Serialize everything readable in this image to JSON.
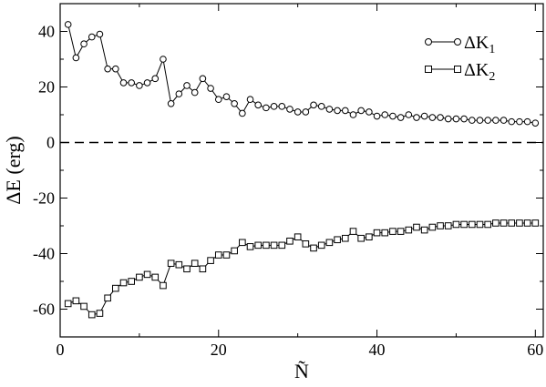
{
  "chart_data": {
    "type": "line",
    "xlabel": "Ñ",
    "ylabel": "ΔE (erg)",
    "xlim": [
      0,
      61
    ],
    "ylim": [
      -70,
      50
    ],
    "xticks": [
      0,
      20,
      40,
      60
    ],
    "xtick_labels": [
      "0",
      "20",
      "40",
      "60"
    ],
    "yticks": [
      -60,
      -40,
      -20,
      0,
      20,
      40
    ],
    "ytick_labels": [
      "-60",
      "-40",
      "-20",
      "0",
      "20",
      "40"
    ],
    "grid": false,
    "legend_position": "top-right",
    "reference_line": {
      "y": 0,
      "style": "dashed"
    },
    "series": [
      {
        "name": "ΔK",
        "name_sub": "1",
        "marker": "circle",
        "x": [
          1,
          2,
          3,
          4,
          5,
          6,
          7,
          8,
          9,
          10,
          11,
          12,
          13,
          14,
          15,
          16,
          17,
          18,
          19,
          20,
          21,
          22,
          23,
          24,
          25,
          26,
          27,
          28,
          29,
          30,
          31,
          32,
          33,
          34,
          35,
          36,
          37,
          38,
          39,
          40,
          41,
          42,
          43,
          44,
          45,
          46,
          47,
          48,
          49,
          50,
          51,
          52,
          53,
          54,
          55,
          56,
          57,
          58,
          59,
          60
        ],
        "values": [
          42.5,
          30.5,
          35.5,
          38,
          39,
          26.5,
          26.5,
          21.5,
          21.5,
          20.5,
          21.5,
          23,
          30,
          14,
          17.5,
          20.5,
          18,
          23,
          19.5,
          15.5,
          16.5,
          14,
          10.5,
          15.5,
          13.5,
          12.5,
          13,
          13,
          12,
          11,
          11,
          13.5,
          13,
          12,
          11.5,
          11.5,
          10,
          11.5,
          11,
          9.5,
          10,
          9.5,
          9,
          10,
          9,
          9.5,
          9,
          9,
          8.5,
          8.5,
          8.5,
          8,
          8,
          8,
          8,
          8,
          7.5,
          7.5,
          7.5,
          7
        ]
      },
      {
        "name": "ΔK",
        "name_sub": "2",
        "marker": "square",
        "x": [
          1,
          2,
          3,
          4,
          5,
          6,
          7,
          8,
          9,
          10,
          11,
          12,
          13,
          14,
          15,
          16,
          17,
          18,
          19,
          20,
          21,
          22,
          23,
          24,
          25,
          26,
          27,
          28,
          29,
          30,
          31,
          32,
          33,
          34,
          35,
          36,
          37,
          38,
          39,
          40,
          41,
          42,
          43,
          44,
          45,
          46,
          47,
          48,
          49,
          50,
          51,
          52,
          53,
          54,
          55,
          56,
          57,
          58,
          59,
          60
        ],
        "values": [
          -58,
          -57,
          -59,
          -62,
          -61.5,
          -56,
          -52.5,
          -50.5,
          -50,
          -48.5,
          -47.5,
          -48.5,
          -51.5,
          -43.5,
          -44,
          -45.5,
          -43.5,
          -45.5,
          -42.5,
          -40.5,
          -40.5,
          -39,
          -36,
          -37.5,
          -37,
          -37,
          -37,
          -37,
          -35.5,
          -34,
          -36.5,
          -38,
          -37,
          -36,
          -35,
          -34.5,
          -32,
          -34.5,
          -34,
          -32.5,
          -32.5,
          -32,
          -32,
          -31.5,
          -30.5,
          -31.5,
          -30.5,
          -30,
          -30,
          -29.5,
          -29.5,
          -29.5,
          -29.5,
          -29.5,
          -29,
          -29,
          -29,
          -29,
          -29,
          -29
        ]
      }
    ]
  }
}
